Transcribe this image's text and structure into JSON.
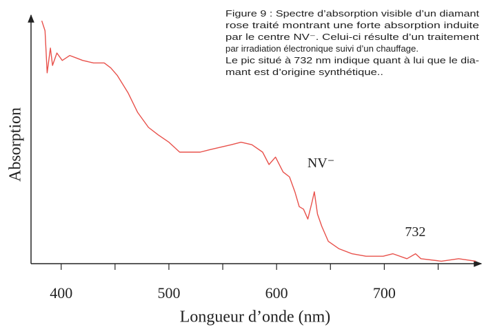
{
  "chart_data": {
    "type": "line",
    "caption": [
      "Figure 9 : Spectre d’absorption visible d’un diamant",
      "rose traité montrant une forte absorption induite",
      "par le centre NV⁻. Celui-ci résulte d’un traitement",
      "par irradiation électronique suivi d’un chauffage.",
      "Le pic situé à 732 nm indique quant à lui que le dia-",
      "mant est d’origine synthétique.."
    ],
    "x_label": "Longueur d’onde (nm)",
    "y_label": "Absorption",
    "annotations": [
      {
        "text": "NV⁻",
        "x": 635,
        "y": 29
      },
      {
        "text": "732",
        "x": 732,
        "y": 4
      }
    ],
    "xlim": [
      372,
      790
    ],
    "ylim": [
      0,
      100
    ],
    "xticks": [
      400,
      500,
      600,
      700
    ],
    "minor_xticks": [
      450,
      550,
      650,
      750
    ],
    "color": "#e8504a",
    "x": [
      382,
      385,
      387,
      390,
      392,
      396,
      401,
      408,
      414,
      420,
      430,
      440,
      446,
      452,
      462,
      471,
      481,
      490,
      500,
      510,
      519,
      529,
      538,
      548,
      558,
      567,
      577,
      587,
      593,
      599,
      606,
      612,
      617,
      621,
      625,
      629,
      633,
      635,
      638,
      642,
      648,
      658,
      670,
      683,
      699,
      708,
      721,
      729,
      734,
      753,
      769,
      785
    ],
    "values": [
      98,
      94,
      77,
      87,
      80,
      85,
      82,
      84,
      83,
      82,
      81,
      81,
      79,
      76,
      69,
      61,
      55,
      52,
      49,
      45,
      45,
      45,
      46,
      47,
      48,
      49,
      48,
      45,
      40,
      43,
      37,
      35,
      29,
      23,
      22,
      18,
      25,
      29,
      20,
      15,
      9,
      6,
      4,
      3,
      3,
      4,
      2,
      4,
      2,
      1,
      2,
      1
    ]
  }
}
